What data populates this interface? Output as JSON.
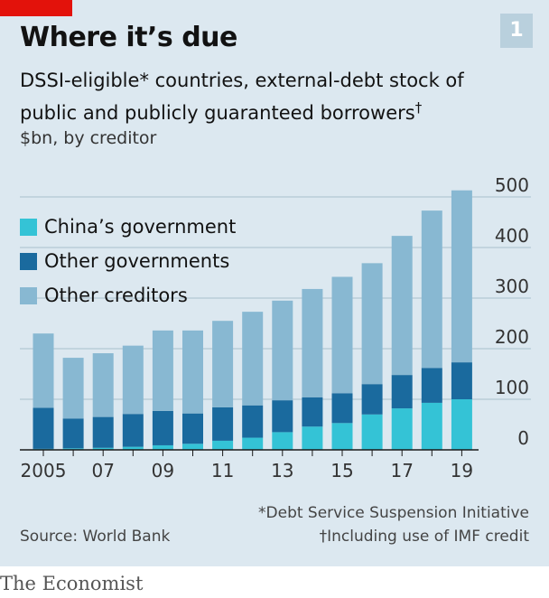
{
  "header": {
    "title": "Where it’s due",
    "badge": "1",
    "subtitle_main": "DSSI-eligible* countries, external-debt stock of public and publicly guaranteed borrowers",
    "subtitle_mark": "†",
    "unit": "$bn, by creditor"
  },
  "chart_data": {
    "type": "bar",
    "stacked": true,
    "years": [
      2005,
      2006,
      2007,
      2008,
      2009,
      2010,
      2011,
      2012,
      2013,
      2014,
      2015,
      2016,
      2017,
      2018,
      2019
    ],
    "x_tick_labels": [
      "2005",
      "07",
      "09",
      "11",
      "13",
      "15",
      "17",
      "19"
    ],
    "x_tick_years": [
      2005,
      2007,
      2009,
      2011,
      2013,
      2015,
      2017,
      2019
    ],
    "y_ticks": [
      "0",
      "100",
      "200",
      "300",
      "400",
      "500"
    ],
    "ylim": [
      0,
      500
    ],
    "series": [
      {
        "name": "China’s government",
        "color": "#34c3d6",
        "values": [
          2,
          3,
          4,
          6,
          9,
          12,
          18,
          24,
          35,
          46,
          53,
          70,
          82,
          93,
          100
        ]
      },
      {
        "name": "Other governments",
        "color": "#1a6a9e",
        "values": [
          81,
          59,
          61,
          65,
          68,
          60,
          66,
          64,
          63,
          58,
          59,
          60,
          66,
          69,
          73
        ]
      },
      {
        "name": "Other creditors",
        "color": "#88b8d2",
        "values": [
          147,
          120,
          126,
          135,
          159,
          164,
          171,
          185,
          197,
          214,
          230,
          239,
          275,
          311,
          340
        ]
      }
    ],
    "legend_position": "top-left"
  },
  "footnotes": {
    "dssi": "*Debt Service Suspension Initiative",
    "imf": "†Including use of IMF credit"
  },
  "source": "Source: World Bank",
  "brand": "The Economist"
}
